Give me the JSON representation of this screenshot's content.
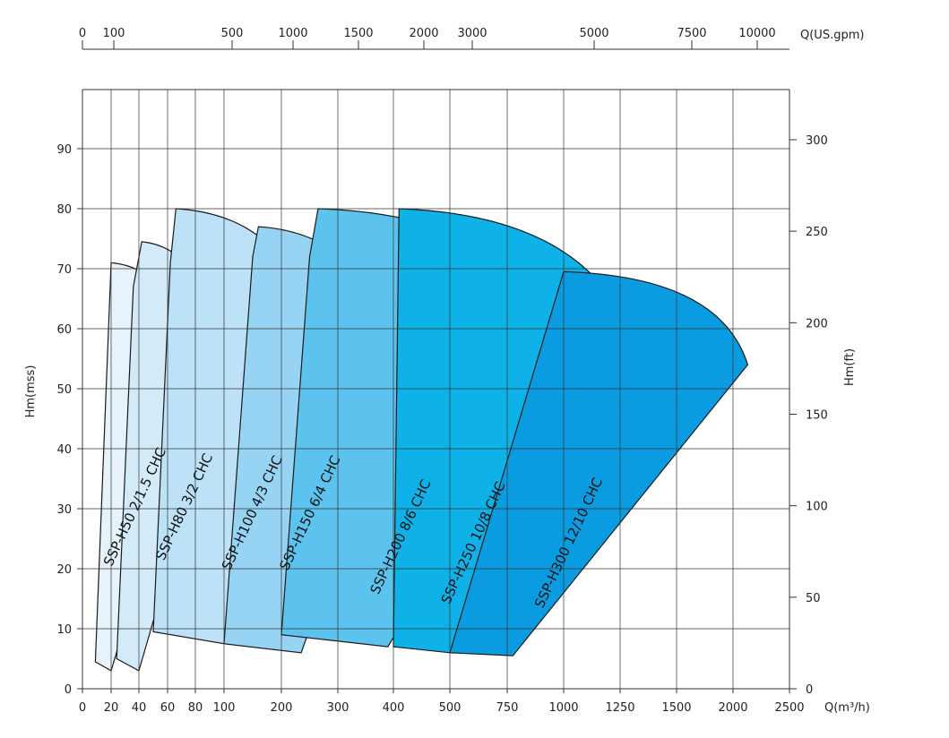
{
  "chart_data": {
    "type": "area",
    "x_axis_bottom": {
      "label": "Q(m³/h)",
      "ticks": [
        "0",
        "20",
        "40",
        "60",
        "80",
        "100",
        "200",
        "300",
        "400",
        "500",
        "750",
        "1000",
        "1250",
        "1500",
        "2000",
        "2500"
      ]
    },
    "x_axis_top": {
      "label": "Q(US.gpm)",
      "ticks": [
        "0",
        "100",
        "500",
        "1000",
        "1500",
        "2000",
        "3000",
        "5000",
        "7500",
        "10000"
      ]
    },
    "y_axis_left": {
      "label": "Hm(mss)",
      "ticks": [
        0,
        10,
        20,
        30,
        40,
        50,
        60,
        70,
        80,
        90
      ],
      "ylim": [
        0,
        98
      ]
    },
    "y_axis_right": {
      "label": "Hm(ft)",
      "ticks": [
        0,
        50,
        100,
        150,
        200,
        250,
        300
      ]
    },
    "grid": true,
    "series": [
      {
        "name": "SSP-H50 2/1.5 CHC",
        "color": "#e6f3fb",
        "label_flow": 40,
        "label_head": 30,
        "points": [
          [
            9,
            4.5
          ],
          [
            20,
            71
          ],
          [
            80,
            50
          ],
          [
            20,
            3
          ]
        ]
      },
      {
        "name": "SSP-H80 3/2 CHC",
        "color": "#d3eaf8",
        "label_flow": 75,
        "label_head": 30,
        "points": [
          [
            24,
            5
          ],
          [
            36,
            67
          ],
          [
            42,
            74.5
          ],
          [
            100,
            52
          ],
          [
            40,
            3
          ]
        ]
      },
      {
        "name": "SSP-H100 4/3 CHC",
        "color": "#bde1f7",
        "label_flow": 156,
        "label_head": 29,
        "points": [
          [
            50,
            9.5
          ],
          [
            62,
            71
          ],
          [
            66,
            80
          ],
          [
            267,
            56
          ],
          [
            100,
            7.5
          ]
        ]
      },
      {
        "name": "SSP-H150 6/4 CHC",
        "color": "#97d4f4",
        "label_flow": 258,
        "label_head": 29,
        "points": [
          [
            100,
            7.5
          ],
          [
            150,
            72
          ],
          [
            160,
            77
          ],
          [
            410,
            52
          ],
          [
            235,
            6
          ]
        ]
      },
      {
        "name": "SSP-H200 8/6 CHC",
        "color": "#5cc3ee",
        "label_flow": 420,
        "label_head": 25,
        "points": [
          [
            200,
            9
          ],
          [
            250,
            72
          ],
          [
            265,
            80
          ],
          [
            1000,
            56
          ],
          [
            390,
            7
          ]
        ]
      },
      {
        "name": "SSP-H250 10/8 CHC",
        "color": "#0fb2e8",
        "label_flow": 620,
        "label_head": 24,
        "points": [
          [
            400,
            7
          ],
          [
            410,
            80
          ],
          [
            1330,
            55
          ],
          [
            500,
            6
          ]
        ]
      },
      {
        "name": "SSP-H300 12/10 CHC",
        "color": "#0b9be0",
        "label_flow": 1040,
        "label_head": 24,
        "points": [
          [
            500,
            6
          ],
          [
            1000,
            69.5
          ],
          [
            2130,
            54
          ],
          [
            775,
            5.5
          ]
        ]
      }
    ]
  }
}
